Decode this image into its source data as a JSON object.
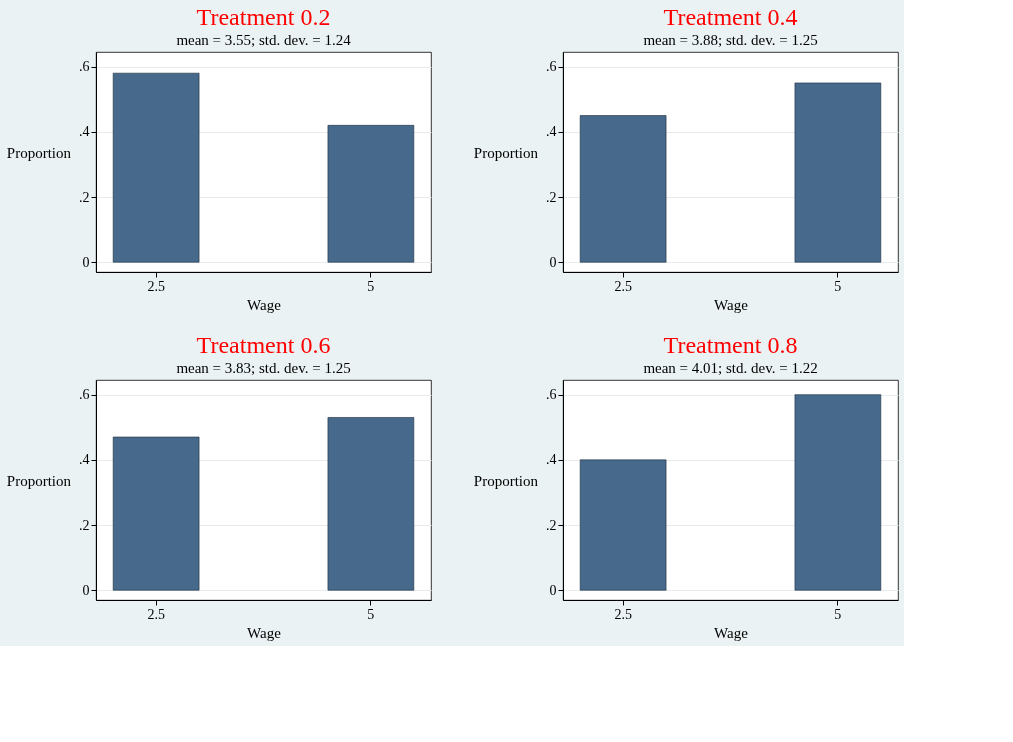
{
  "chart_data": [
    {
      "type": "bar",
      "title": "Treatment 0.2",
      "subtitle": "mean = 3.55; std. dev. = 1.24",
      "xlabel": "Wage",
      "ylabel": "Proportion",
      "categories": [
        "2.5",
        "5"
      ],
      "values": [
        0.58,
        0.42
      ],
      "color": "#476a8c",
      "ylim": [
        -0.03,
        0.645
      ],
      "yticks": [
        {
          "value": 0,
          "label": "0"
        },
        {
          "value": 0.2,
          "label": ".2"
        },
        {
          "value": 0.4,
          "label": ".4"
        },
        {
          "value": 0.6,
          "label": ".6"
        }
      ],
      "grid": "y"
    },
    {
      "type": "bar",
      "title": "Treatment 0.4",
      "subtitle": "mean = 3.88; std. dev. = 1.25",
      "xlabel": "Wage",
      "ylabel": "Proportion",
      "categories": [
        "2.5",
        "5"
      ],
      "values": [
        0.45,
        0.55
      ],
      "color": "#476a8c",
      "ylim": [
        -0.03,
        0.645
      ],
      "yticks": [
        {
          "value": 0,
          "label": "0"
        },
        {
          "value": 0.2,
          "label": ".2"
        },
        {
          "value": 0.4,
          "label": ".4"
        },
        {
          "value": 0.6,
          "label": ".6"
        }
      ],
      "grid": "y"
    },
    {
      "type": "bar",
      "title": "Treatment 0.6",
      "subtitle": "mean = 3.83; std. dev. = 1.25",
      "xlabel": "Wage",
      "ylabel": "Proportion",
      "categories": [
        "2.5",
        "5"
      ],
      "values": [
        0.47,
        0.53
      ],
      "color": "#476a8c",
      "ylim": [
        -0.03,
        0.645
      ],
      "yticks": [
        {
          "value": 0,
          "label": "0"
        },
        {
          "value": 0.2,
          "label": ".2"
        },
        {
          "value": 0.4,
          "label": ".4"
        },
        {
          "value": 0.6,
          "label": ".6"
        }
      ],
      "grid": "y"
    },
    {
      "type": "bar",
      "title": "Treatment 0.8",
      "subtitle": "mean = 4.01; std. dev. = 1.22",
      "xlabel": "Wage",
      "ylabel": "Proportion",
      "categories": [
        "2.5",
        "5"
      ],
      "values": [
        0.4,
        0.6
      ],
      "color": "#476a8c",
      "ylim": [
        -0.03,
        0.645
      ],
      "yticks": [
        {
          "value": 0,
          "label": "0"
        },
        {
          "value": 0.2,
          "label": ".2"
        },
        {
          "value": 0.4,
          "label": ".4"
        },
        {
          "value": 0.6,
          "label": ".6"
        }
      ],
      "grid": "y"
    }
  ]
}
